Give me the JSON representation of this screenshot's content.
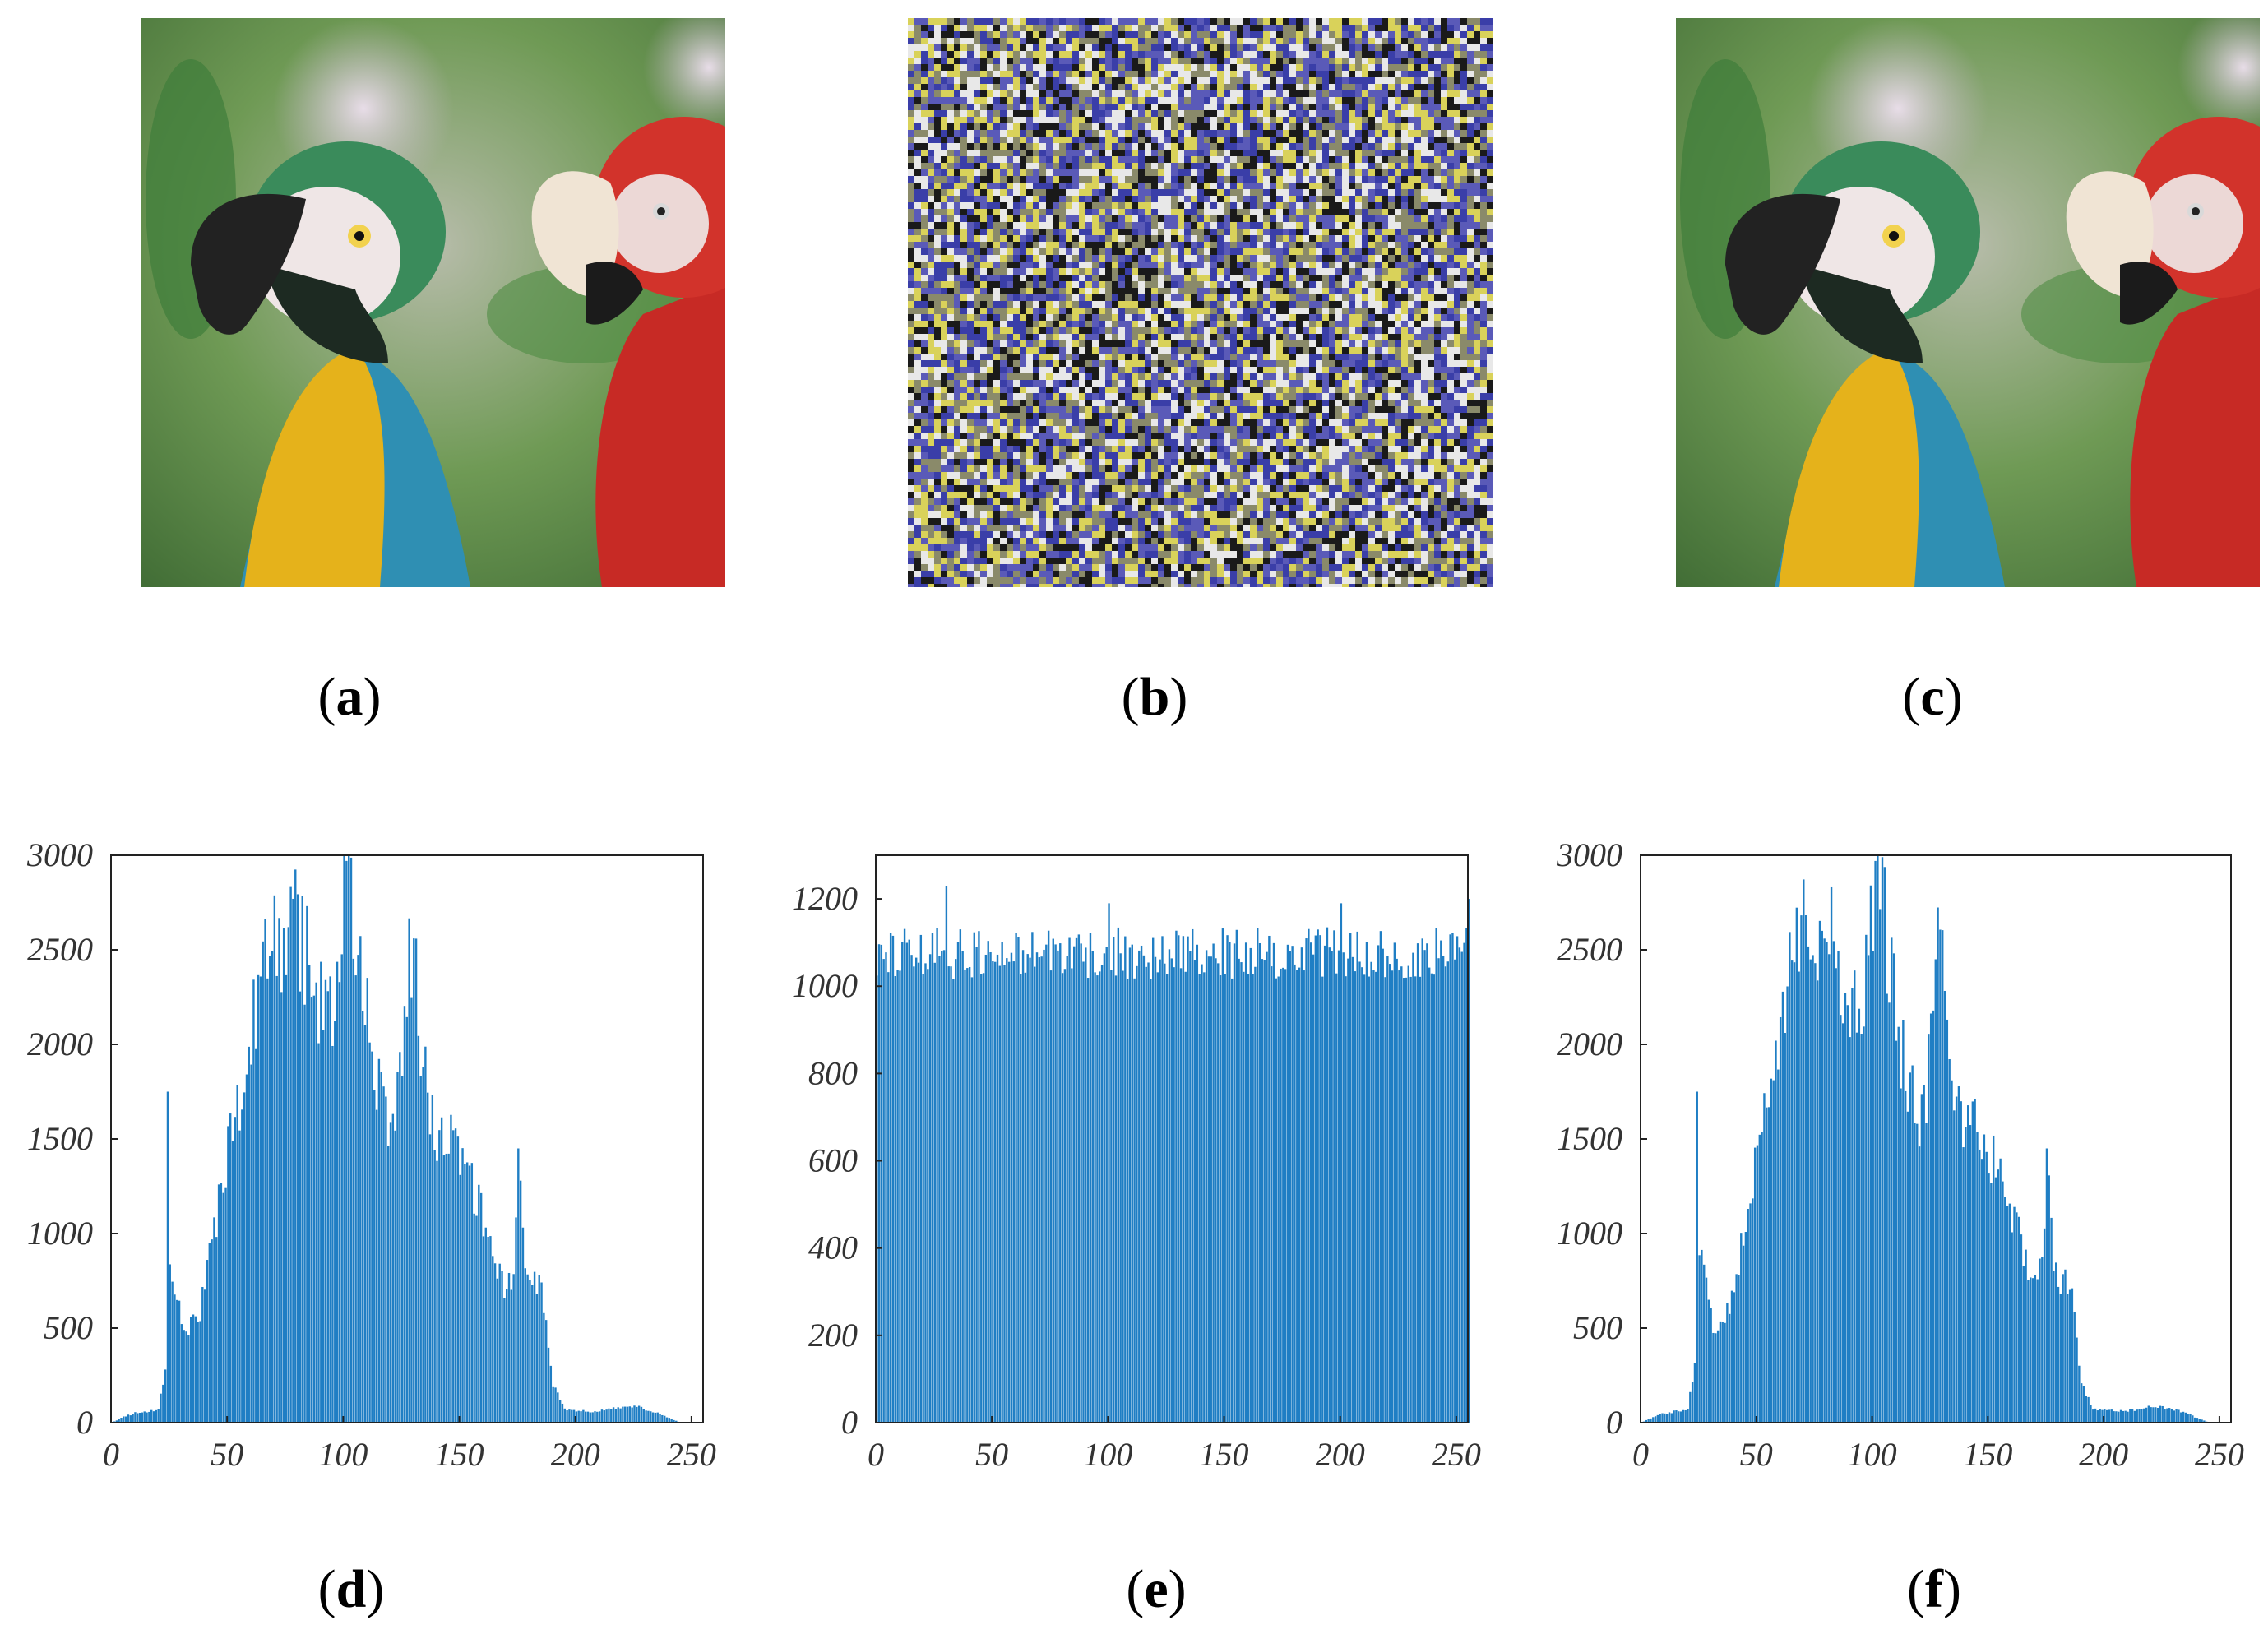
{
  "figure": {
    "labels": [
      "a",
      "b",
      "c",
      "d",
      "e",
      "f"
    ],
    "images": [
      {
        "id": "a",
        "name": "original-parrots-image"
      },
      {
        "id": "b",
        "name": "encrypted-noise-image"
      },
      {
        "id": "c",
        "name": "decrypted-parrots-image"
      }
    ]
  },
  "colors": {
    "bar": "#1f7ec4",
    "axis": "#222222",
    "noise_yellow": "#d9d25a",
    "noise_blue": "#3a3ea8",
    "noise_white": "#e8e8e8",
    "noise_black": "#1a1a1a"
  },
  "chart_data": [
    {
      "id": "d",
      "type": "bar",
      "title": "",
      "xlabel": "",
      "ylabel": "",
      "xlim": [
        0,
        255
      ],
      "ylim": [
        0,
        3000
      ],
      "xticks": [
        0,
        50,
        100,
        150,
        200,
        250
      ],
      "yticks": [
        0,
        500,
        1000,
        1500,
        2000,
        2500,
        3000
      ],
      "profile": [
        [
          0,
          0
        ],
        [
          5,
          30
        ],
        [
          10,
          50
        ],
        [
          20,
          70
        ],
        [
          23,
          300
        ],
        [
          24,
          1750
        ],
        [
          25,
          900
        ],
        [
          28,
          700
        ],
        [
          32,
          450
        ],
        [
          38,
          600
        ],
        [
          45,
          1100
        ],
        [
          55,
          1700
        ],
        [
          63,
          2300
        ],
        [
          66,
          2600
        ],
        [
          72,
          2550
        ],
        [
          78,
          2650
        ],
        [
          83,
          2500
        ],
        [
          88,
          2200
        ],
        [
          93,
          2150
        ],
        [
          98,
          2400
        ],
        [
          101,
          2950
        ],
        [
          103,
          2800
        ],
        [
          107,
          2500
        ],
        [
          110,
          2100
        ],
        [
          115,
          1800
        ],
        [
          120,
          1550
        ],
        [
          125,
          1950
        ],
        [
          128,
          2550
        ],
        [
          131,
          2300
        ],
        [
          135,
          1800
        ],
        [
          140,
          1550
        ],
        [
          145,
          1600
        ],
        [
          150,
          1450
        ],
        [
          155,
          1250
        ],
        [
          160,
          1100
        ],
        [
          165,
          900
        ],
        [
          170,
          700
        ],
        [
          173,
          820
        ],
        [
          175,
          1450
        ],
        [
          178,
          800
        ],
        [
          182,
          750
        ],
        [
          186,
          650
        ],
        [
          190,
          200
        ],
        [
          195,
          70
        ],
        [
          205,
          60
        ],
        [
          215,
          70
        ],
        [
          222,
          90
        ],
        [
          228,
          80
        ],
        [
          235,
          50
        ],
        [
          245,
          0
        ],
        [
          255,
          0
        ]
      ],
      "spikes": [
        [
          24,
          1750
        ],
        [
          101,
          2970
        ],
        [
          175,
          1450
        ]
      ]
    },
    {
      "id": "e",
      "type": "bar",
      "title": "",
      "xlabel": "",
      "ylabel": "",
      "xlim": [
        0,
        255
      ],
      "ylim": [
        0,
        1300
      ],
      "xticks": [
        0,
        50,
        100,
        150,
        200,
        250
      ],
      "yticks": [
        0,
        200,
        400,
        600,
        800,
        1000,
        1200
      ],
      "mean": 1075,
      "spread": 60,
      "spikes": [
        [
          30,
          1230
        ],
        [
          100,
          1190
        ],
        [
          200,
          1190
        ],
        [
          255,
          1200
        ]
      ]
    },
    {
      "id": "f",
      "type": "bar",
      "title": "",
      "xlabel": "",
      "ylabel": "",
      "xlim": [
        0,
        255
      ],
      "ylim": [
        0,
        3000
      ],
      "xticks": [
        0,
        50,
        100,
        150,
        200,
        250
      ],
      "yticks": [
        0,
        500,
        1000,
        1500,
        2000,
        2500,
        3000
      ],
      "profile": [
        [
          0,
          0
        ],
        [
          5,
          30
        ],
        [
          10,
          50
        ],
        [
          20,
          70
        ],
        [
          23,
          300
        ],
        [
          24,
          1750
        ],
        [
          25,
          900
        ],
        [
          28,
          700
        ],
        [
          32,
          450
        ],
        [
          38,
          600
        ],
        [
          45,
          1100
        ],
        [
          55,
          1700
        ],
        [
          63,
          2300
        ],
        [
          66,
          2600
        ],
        [
          72,
          2550
        ],
        [
          78,
          2650
        ],
        [
          83,
          2500
        ],
        [
          88,
          2200
        ],
        [
          93,
          2150
        ],
        [
          98,
          2400
        ],
        [
          101,
          2950
        ],
        [
          103,
          2800
        ],
        [
          107,
          2500
        ],
        [
          110,
          2100
        ],
        [
          115,
          1800
        ],
        [
          120,
          1550
        ],
        [
          125,
          1950
        ],
        [
          128,
          2550
        ],
        [
          131,
          2300
        ],
        [
          135,
          1800
        ],
        [
          140,
          1550
        ],
        [
          145,
          1600
        ],
        [
          150,
          1450
        ],
        [
          155,
          1250
        ],
        [
          160,
          1100
        ],
        [
          165,
          900
        ],
        [
          170,
          700
        ],
        [
          173,
          820
        ],
        [
          175,
          1450
        ],
        [
          178,
          800
        ],
        [
          182,
          750
        ],
        [
          186,
          650
        ],
        [
          190,
          200
        ],
        [
          195,
          70
        ],
        [
          205,
          60
        ],
        [
          215,
          70
        ],
        [
          222,
          90
        ],
        [
          228,
          80
        ],
        [
          235,
          50
        ],
        [
          245,
          0
        ],
        [
          255,
          0
        ]
      ],
      "spikes": [
        [
          24,
          1750
        ],
        [
          101,
          2970
        ],
        [
          175,
          1450
        ]
      ]
    }
  ]
}
